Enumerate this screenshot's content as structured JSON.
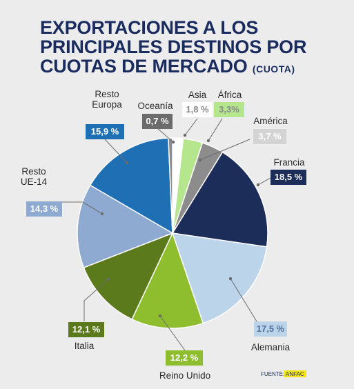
{
  "title": {
    "lines": [
      "EXPORTACIONES A LOS",
      "PRINCIPALES DESTINOS POR",
      "CUOTAS DE MERCADO"
    ],
    "subtitle": "(CUOTA)"
  },
  "source": {
    "label": "FUENTE:",
    "name": "ANFAC"
  },
  "chart_data": {
    "type": "pie",
    "title": "EXPORTACIONES A LOS PRINCIPALES DESTINOS POR CUOTAS DE MERCADO (CUOTA)",
    "unit": "%",
    "slices": [
      {
        "name": "Asia",
        "value": 1.8,
        "label": "1,8 %",
        "color": "#ffffff",
        "text_color": "#8a8a8a"
      },
      {
        "name": "África",
        "value": 3.3,
        "label": "3,3%",
        "color": "#b5e58c",
        "text_color": "#8a8a8a"
      },
      {
        "name": "América",
        "value": 3.7,
        "label": "3,7 %",
        "color": "#8c8c8c",
        "text_color": "#ffffff"
      },
      {
        "name": "Francia",
        "value": 18.5,
        "label": "18,5 %",
        "color": "#1c2d59",
        "text_color": "#ffffff"
      },
      {
        "name": "Alemania",
        "value": 17.5,
        "label": "17,5 %",
        "color": "#bcd4ea",
        "text_color": "#4f6e99"
      },
      {
        "name": "Reino Unido",
        "value": 12.2,
        "label": "12,2 %",
        "color": "#8ebd2e",
        "text_color": "#ffffff"
      },
      {
        "name": "Italia",
        "value": 12.1,
        "label": "12,1 %",
        "color": "#5a7a1c",
        "text_color": "#ffffff"
      },
      {
        "name": "Resto UE-14",
        "value": 14.3,
        "label": "14,3 %",
        "color": "#8faad0",
        "text_color": "#ffffff"
      },
      {
        "name": "Resto Europa",
        "value": 15.9,
        "label": "15,9 %",
        "color": "#1f6fb5",
        "text_color": "#ffffff"
      },
      {
        "name": "Oceanía",
        "value": 0.7,
        "label": "0,7 %",
        "color": "#8c8c8c",
        "text_color": "#ffffff"
      }
    ],
    "label_lines": {
      "Asia": [
        "Asia"
      ],
      "África": [
        "África"
      ],
      "América": [
        "América"
      ],
      "Francia": [
        "Francia"
      ],
      "Alemania": [
        "Alemania"
      ],
      "Reino Unido": [
        "Reino Unido"
      ],
      "Italia": [
        "Italia"
      ],
      "Resto UE-14": [
        "Resto",
        "UE-14"
      ],
      "Resto Europa": [
        "Resto",
        "Europa"
      ],
      "Oceanía": [
        "Oceanía"
      ]
    },
    "value_box_colors": {
      "Asia": "#ffffff",
      "África": "#b5e58c",
      "América": "#d4d4d4",
      "Francia": "#1c2d59",
      "Alemania": "#bcd4ea",
      "Reino Unido": "#8ebd2e",
      "Italia": "#5a7a1c",
      "Resto UE-14": "#8faad0",
      "Resto Europa": "#1f6fb5",
      "Oceanía": "#6b6b6b"
    }
  }
}
